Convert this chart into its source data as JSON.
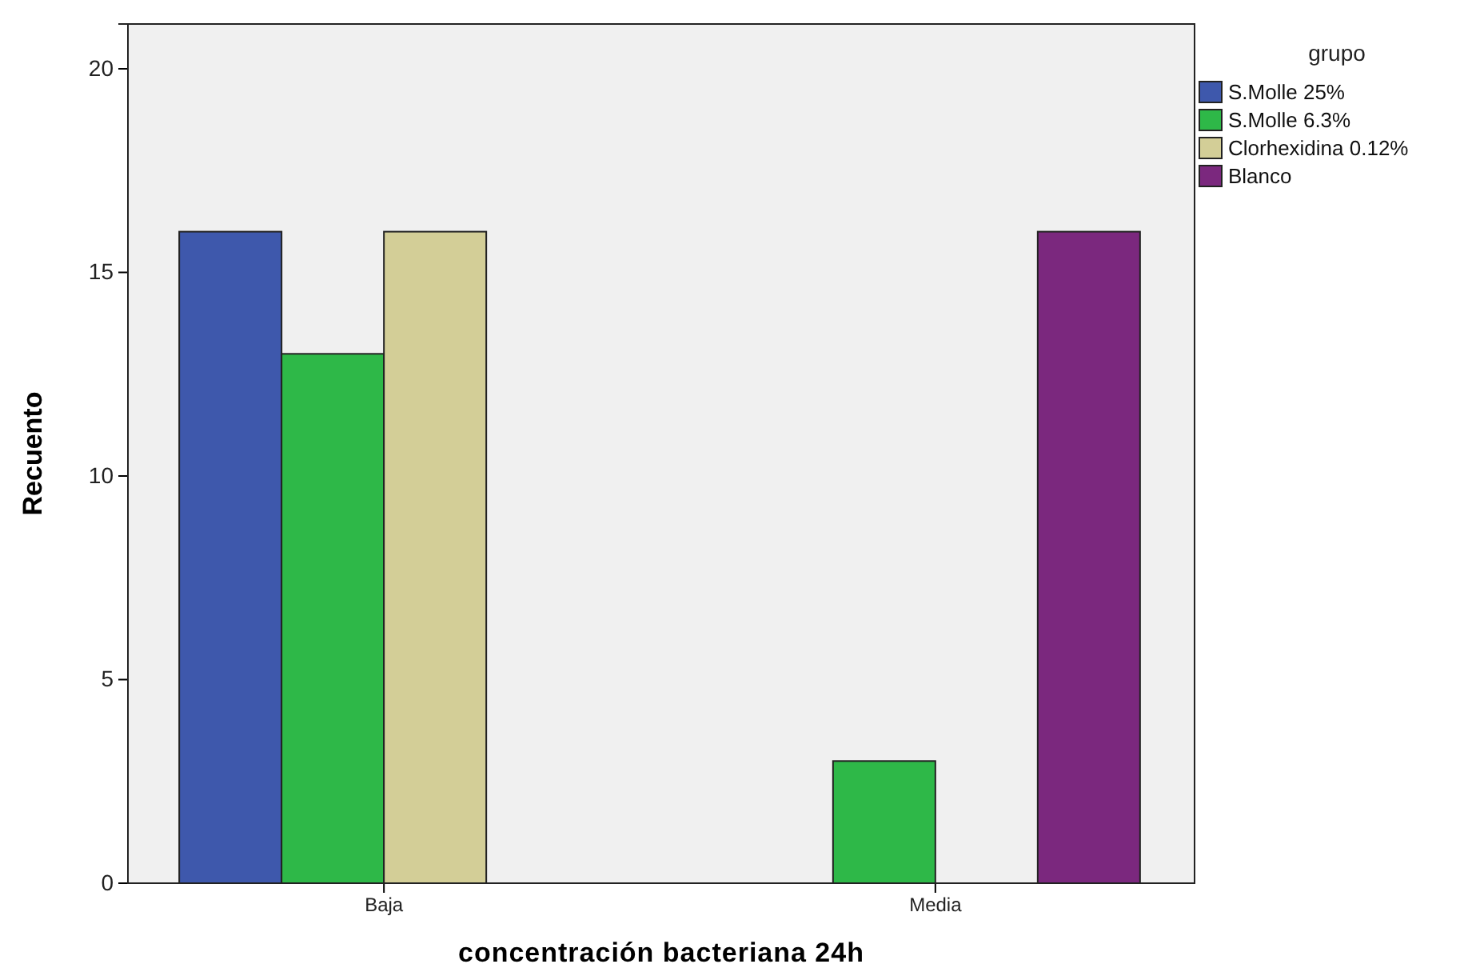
{
  "chart_data": {
    "type": "bar",
    "xlabel": "concentración bacteriana 24h",
    "ylabel": "Recuento",
    "legend_title": "grupo",
    "categories": [
      "Baja",
      "Media"
    ],
    "series": [
      {
        "name": "S.Molle 25%",
        "color": "#3e58ac",
        "values": [
          16,
          0
        ]
      },
      {
        "name": "S.Molle 6.3%",
        "color": "#2eb848",
        "values": [
          13,
          3
        ]
      },
      {
        "name": "Clorhexidina 0.12%",
        "color": "#d3ce97",
        "values": [
          16,
          0
        ]
      },
      {
        "name": "Blanco",
        "color": "#7b287e",
        "values": [
          0,
          16
        ]
      }
    ],
    "ylim": [
      0,
      21.1
    ],
    "yticks": [
      0,
      5,
      10,
      15,
      20
    ],
    "grid": false,
    "legend": "top right"
  }
}
